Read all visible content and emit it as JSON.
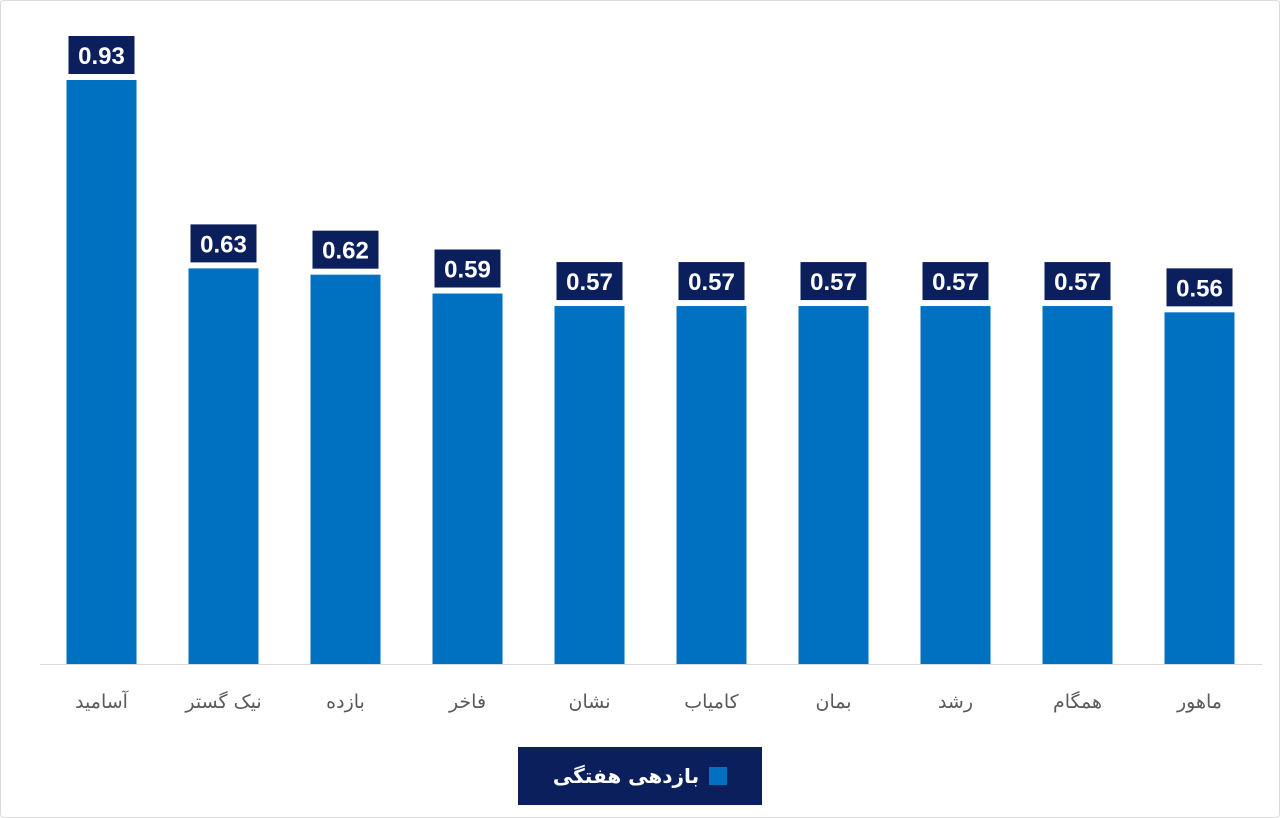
{
  "chart_data": {
    "type": "bar",
    "categories": [
      "آسامید",
      "نیک گستر",
      "بازده",
      "فاخر",
      "نشان",
      "کامیاب",
      "بمان",
      "رشد",
      "همگام",
      "ماهور"
    ],
    "series": [
      {
        "name": "بازدهی هفتگی",
        "values": [
          0.93,
          0.63,
          0.62,
          0.59,
          0.57,
          0.57,
          0.57,
          0.57,
          0.57,
          0.56
        ]
      }
    ],
    "ylim": [
      0,
      0.93
    ],
    "grid": false,
    "legend": "bottom",
    "colors": {
      "bar": "#0070c0",
      "label_bg": "#0a1f5c",
      "label_text": "#ffffff",
      "axis_text": "#595959"
    }
  }
}
